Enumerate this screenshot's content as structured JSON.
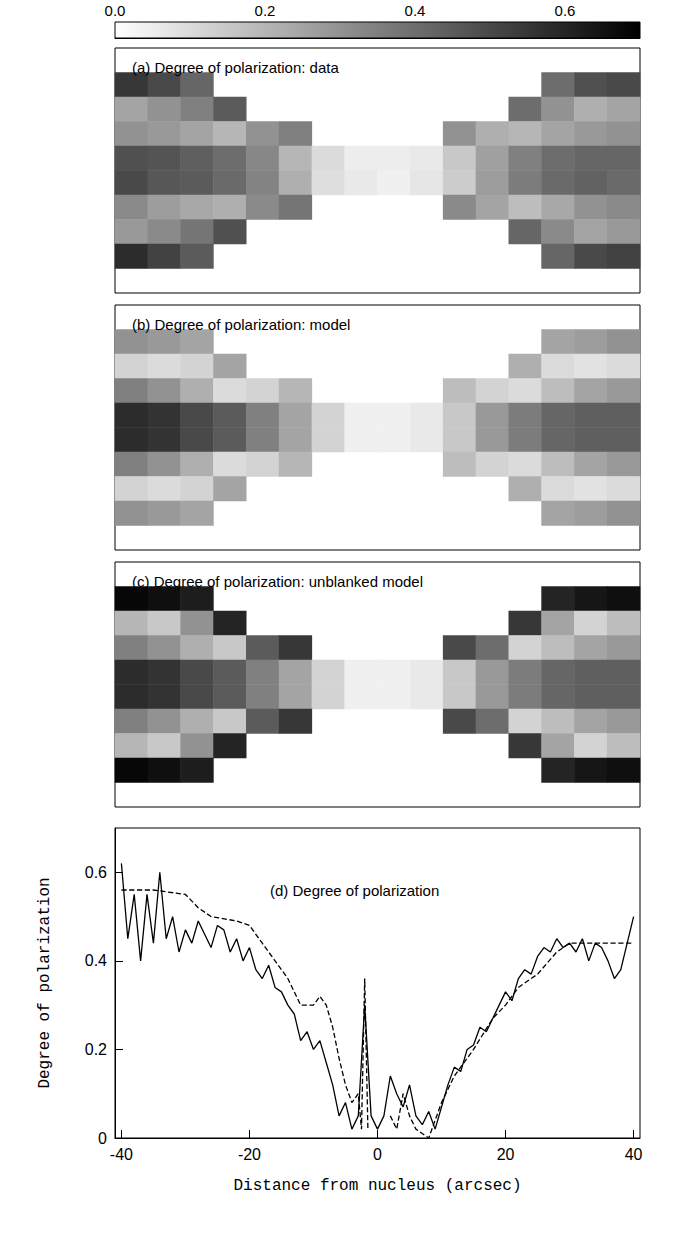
{
  "chart_data": [
    {
      "type": "heatmap",
      "title": "(a) Degree of polarization: data",
      "tick_labels": false,
      "colorbar_range": [
        0,
        0.7
      ],
      "colorbar_ticks": [
        {
          "value": 0,
          "label": "0.0"
        },
        0.2,
        0.4,
        0.6
      ],
      "x": [
        -37.5,
        -32.5,
        -27.5,
        -22.5,
        -17.5,
        -12.5,
        -7.5,
        -2.5,
        2.5,
        7.5,
        12.5,
        17.5,
        22.5,
        27.5,
        32.5,
        37.5
      ],
      "y": [
        18,
        14,
        10,
        6,
        2,
        -2,
        -6,
        -10,
        -14,
        -18
      ],
      "cells": [
        [
          null,
          null,
          null,
          null,
          null,
          null,
          null,
          null,
          null,
          null,
          null,
          null,
          null,
          null,
          null,
          null
        ],
        [
          0.55,
          0.5,
          0.42,
          null,
          null,
          null,
          null,
          null,
          null,
          null,
          null,
          null,
          null,
          0.4,
          0.48,
          0.5
        ],
        [
          0.25,
          0.3,
          0.35,
          0.45,
          null,
          null,
          null,
          null,
          null,
          null,
          null,
          null,
          0.4,
          0.3,
          0.22,
          0.25
        ],
        [
          0.3,
          0.28,
          0.25,
          0.2,
          0.3,
          0.35,
          null,
          null,
          null,
          null,
          0.3,
          0.22,
          0.2,
          0.25,
          0.28,
          0.3
        ],
        [
          0.48,
          0.47,
          0.44,
          0.4,
          0.33,
          0.2,
          0.1,
          0.05,
          0.05,
          0.06,
          0.15,
          0.26,
          0.35,
          0.4,
          0.42,
          0.42
        ],
        [
          0.5,
          0.46,
          0.45,
          0.41,
          0.34,
          0.22,
          0.09,
          0.06,
          0.04,
          0.07,
          0.14,
          0.27,
          0.36,
          0.41,
          0.43,
          0.41
        ],
        [
          0.32,
          0.27,
          0.24,
          0.22,
          0.32,
          0.38,
          null,
          null,
          null,
          null,
          0.32,
          0.25,
          0.18,
          0.24,
          0.3,
          0.32
        ],
        [
          0.28,
          0.32,
          0.38,
          0.48,
          null,
          null,
          null,
          null,
          null,
          null,
          null,
          null,
          0.42,
          0.32,
          0.25,
          0.28
        ],
        [
          0.58,
          0.52,
          0.45,
          null,
          null,
          null,
          null,
          null,
          null,
          null,
          null,
          null,
          null,
          0.42,
          0.5,
          0.52
        ],
        [
          null,
          null,
          null,
          null,
          null,
          null,
          null,
          null,
          null,
          null,
          null,
          null,
          null,
          null,
          null,
          null
        ]
      ]
    },
    {
      "type": "heatmap",
      "title": "(b) Degree of polarization: model",
      "tick_labels": false,
      "x": [
        -37.5,
        -32.5,
        -27.5,
        -22.5,
        -17.5,
        -12.5,
        -7.5,
        -2.5,
        2.5,
        7.5,
        12.5,
        17.5,
        22.5,
        27.5,
        32.5,
        37.5
      ],
      "y": [
        18,
        14,
        10,
        6,
        2,
        -2,
        -6,
        -10,
        -14,
        -18
      ],
      "cells": [
        [
          null,
          null,
          null,
          null,
          null,
          null,
          null,
          null,
          null,
          null,
          null,
          null,
          null,
          null,
          null,
          null
        ],
        [
          0.3,
          0.28,
          0.25,
          null,
          null,
          null,
          null,
          null,
          null,
          null,
          null,
          null,
          null,
          0.25,
          0.27,
          0.3
        ],
        [
          0.12,
          0.1,
          0.12,
          0.25,
          null,
          null,
          null,
          null,
          null,
          null,
          null,
          null,
          0.22,
          0.1,
          0.08,
          0.1
        ],
        [
          0.35,
          0.3,
          0.22,
          0.1,
          0.12,
          0.2,
          null,
          null,
          null,
          null,
          0.18,
          0.12,
          0.1,
          0.18,
          0.25,
          0.28
        ],
        [
          0.58,
          0.56,
          0.5,
          0.45,
          0.35,
          0.25,
          0.12,
          0.04,
          0.04,
          0.06,
          0.15,
          0.28,
          0.36,
          0.42,
          0.44,
          0.44
        ],
        [
          0.58,
          0.56,
          0.5,
          0.45,
          0.35,
          0.25,
          0.12,
          0.04,
          0.04,
          0.06,
          0.15,
          0.28,
          0.36,
          0.42,
          0.44,
          0.44
        ],
        [
          0.35,
          0.3,
          0.22,
          0.1,
          0.12,
          0.2,
          null,
          null,
          null,
          null,
          0.18,
          0.12,
          0.1,
          0.18,
          0.25,
          0.28
        ],
        [
          0.12,
          0.1,
          0.12,
          0.25,
          null,
          null,
          null,
          null,
          null,
          null,
          null,
          null,
          0.22,
          0.1,
          0.08,
          0.1
        ],
        [
          0.3,
          0.28,
          0.25,
          null,
          null,
          null,
          null,
          null,
          null,
          null,
          null,
          null,
          null,
          0.25,
          0.27,
          0.3
        ],
        [
          null,
          null,
          null,
          null,
          null,
          null,
          null,
          null,
          null,
          null,
          null,
          null,
          null,
          null,
          null,
          null
        ]
      ]
    },
    {
      "type": "heatmap",
      "title": "(c) Degree of polarization: unblanked model",
      "tick_labels": false,
      "x": [
        -37.5,
        -32.5,
        -27.5,
        -22.5,
        -17.5,
        -12.5,
        -7.5,
        -2.5,
        2.5,
        7.5,
        12.5,
        17.5,
        22.5,
        27.5,
        32.5,
        37.5
      ],
      "y": [
        18,
        14,
        10,
        6,
        2,
        -2,
        -6,
        -10,
        -14,
        -18
      ],
      "cells": [
        [
          null,
          null,
          null,
          null,
          null,
          null,
          null,
          null,
          null,
          null,
          null,
          null,
          null,
          null,
          null,
          null
        ],
        [
          0.68,
          0.66,
          0.62,
          null,
          null,
          null,
          null,
          null,
          null,
          null,
          null,
          null,
          null,
          0.6,
          0.64,
          0.66
        ],
        [
          0.2,
          0.15,
          0.3,
          0.6,
          null,
          null,
          null,
          null,
          null,
          null,
          null,
          null,
          0.55,
          0.25,
          0.12,
          0.18
        ],
        [
          0.35,
          0.3,
          0.22,
          0.15,
          0.45,
          0.55,
          null,
          null,
          null,
          null,
          0.5,
          0.4,
          0.12,
          0.18,
          0.25,
          0.28
        ],
        [
          0.58,
          0.56,
          0.5,
          0.45,
          0.35,
          0.25,
          0.12,
          0.04,
          0.04,
          0.06,
          0.15,
          0.28,
          0.36,
          0.42,
          0.44,
          0.44
        ],
        [
          0.58,
          0.56,
          0.5,
          0.45,
          0.35,
          0.25,
          0.12,
          0.04,
          0.04,
          0.06,
          0.15,
          0.28,
          0.36,
          0.42,
          0.44,
          0.44
        ],
        [
          0.35,
          0.3,
          0.22,
          0.15,
          0.45,
          0.55,
          null,
          null,
          null,
          null,
          0.5,
          0.4,
          0.12,
          0.18,
          0.25,
          0.28
        ],
        [
          0.2,
          0.15,
          0.3,
          0.6,
          null,
          null,
          null,
          null,
          null,
          null,
          null,
          null,
          0.55,
          0.25,
          0.12,
          0.18
        ],
        [
          0.68,
          0.66,
          0.62,
          null,
          null,
          null,
          null,
          null,
          null,
          null,
          null,
          null,
          null,
          0.6,
          0.64,
          0.66
        ],
        [
          null,
          null,
          null,
          null,
          null,
          null,
          null,
          null,
          null,
          null,
          null,
          null,
          null,
          null,
          null,
          null
        ]
      ]
    },
    {
      "type": "line",
      "title": "(d) Degree of polarization",
      "x_label": "Distance from nucleus (arcsec)",
      "y_label": "Degree of polarization",
      "xlim": [
        -41,
        41
      ],
      "xticks": [
        -40,
        -20,
        0,
        20,
        40
      ],
      "ylim": [
        0,
        0.7
      ],
      "yticks": [
        0,
        0.2,
        0.4,
        0.6
      ],
      "series": [
        {
          "color": "#000000",
          "line_style": "solid",
          "x": [
            -40,
            -39,
            -38,
            -37,
            -36,
            -35,
            -34,
            -33,
            -32,
            -31,
            -30,
            -29,
            -28,
            -27,
            -26,
            -25,
            -24,
            -23,
            -22,
            -21,
            -20,
            -19,
            -18,
            -17,
            -16,
            -15,
            -14,
            -13,
            -12,
            -11,
            -10,
            -9,
            -8,
            -7,
            -6,
            -5,
            -4,
            -3,
            -2,
            -1,
            0,
            1,
            2,
            3,
            4,
            5,
            6,
            7,
            8,
            9,
            10,
            11,
            12,
            13,
            14,
            15,
            16,
            17,
            18,
            19,
            20,
            21,
            22,
            23,
            24,
            25,
            26,
            27,
            28,
            29,
            30,
            31,
            32,
            33,
            34,
            35,
            36,
            37,
            38,
            39,
            40
          ],
          "values": [
            0.62,
            0.45,
            0.55,
            0.4,
            0.55,
            0.44,
            0.6,
            0.45,
            0.5,
            0.42,
            0.47,
            0.44,
            0.49,
            0.46,
            0.43,
            0.48,
            0.47,
            0.42,
            0.45,
            0.4,
            0.43,
            0.38,
            0.36,
            0.39,
            0.34,
            0.33,
            0.3,
            0.28,
            0.22,
            0.24,
            0.2,
            0.22,
            0.17,
            0.12,
            0.05,
            0.08,
            0.02,
            0.05,
            0.3,
            0.05,
            0.02,
            0.05,
            0.14,
            0.1,
            0.07,
            0.12,
            0.05,
            0.03,
            0.06,
            0.02,
            0.07,
            0.12,
            0.16,
            0.15,
            0.2,
            0.21,
            0.25,
            0.24,
            0.27,
            0.3,
            0.33,
            0.31,
            0.36,
            0.38,
            0.37,
            0.41,
            0.43,
            0.42,
            0.45,
            0.43,
            0.44,
            0.42,
            0.45,
            0.4,
            0.44,
            0.43,
            0.4,
            0.36,
            0.38,
            0.44,
            0.5
          ]
        },
        {
          "color": "#000000",
          "line_style": "dashed",
          "x": [
            -40,
            -35,
            -30,
            -28,
            -26,
            -22,
            -20,
            -18,
            -16,
            -14,
            -12,
            -10,
            -9,
            -8,
            -7,
            -6,
            -5,
            -4,
            -3,
            -2.5,
            -2,
            -1.5,
            -1,
            0,
            1,
            2,
            3,
            4,
            5,
            6,
            8,
            10,
            12,
            15,
            18,
            20,
            22,
            25,
            28,
            30,
            35,
            40
          ],
          "values": [
            0.56,
            0.56,
            0.55,
            0.52,
            0.5,
            0.49,
            0.48,
            0.44,
            0.4,
            0.36,
            0.3,
            0.3,
            0.32,
            0.3,
            0.25,
            0.18,
            0.12,
            0.08,
            0.1,
            0.02,
            0.36,
            0.02,
            null,
            null,
            null,
            0.05,
            0.02,
            0.1,
            0.05,
            0.02,
            0,
            0.08,
            0.14,
            0.2,
            0.27,
            0.3,
            0.34,
            0.37,
            0.42,
            0.44,
            0.44,
            0.44
          ]
        }
      ]
    }
  ]
}
